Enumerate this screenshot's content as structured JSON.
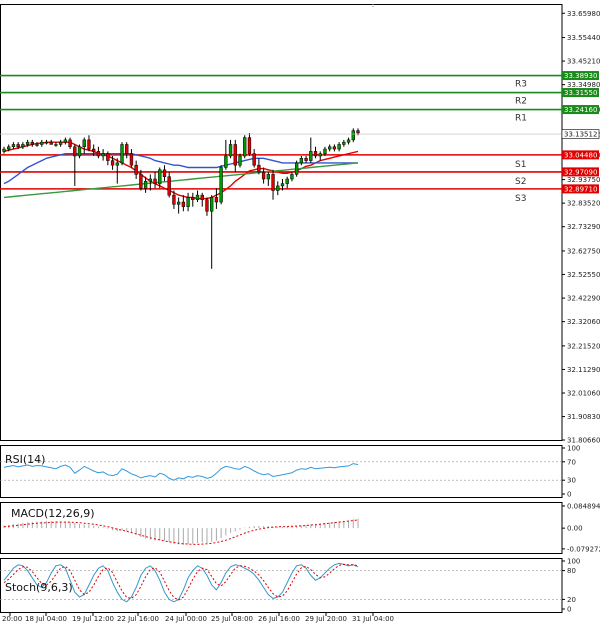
{
  "chart_data": [
    {
      "type": "candlestick",
      "panel": "price",
      "ylim": [
        31.8066,
        33.7
      ],
      "y_ticks": [
        "33.65980",
        "33.55440",
        "33.45210",
        "33.34980",
        "33.24160",
        "33.13512",
        "33.04480",
        "32.93750",
        "32.83520",
        "32.73290",
        "32.62750",
        "32.52550",
        "32.42290",
        "32.32060",
        "32.21520",
        "32.11290",
        "32.01060",
        "31.90830",
        "31.80660"
      ],
      "last_price_label": "33.13512",
      "x_ticks": [
        "20:00",
        "18 Jul 04:00",
        "19 Jul 12:00",
        "22 Jul 16:00",
        "24 Jul 00:00",
        "25 Jul 08:00",
        "26 Jul 16:00",
        "29 Jul 20:00",
        "31 Jul 04:00"
      ],
      "candles": [
        [
          33.06,
          33.08,
          33.05,
          33.07
        ],
        [
          33.07,
          33.09,
          33.06,
          33.08
        ],
        [
          33.08,
          33.1,
          33.07,
          33.09
        ],
        [
          33.09,
          33.1,
          33.07,
          33.08
        ],
        [
          33.08,
          33.1,
          33.07,
          33.09
        ],
        [
          33.09,
          33.11,
          33.08,
          33.1
        ],
        [
          33.1,
          33.11,
          33.08,
          33.09
        ],
        [
          33.09,
          33.1,
          33.08,
          33.09
        ],
        [
          33.09,
          33.11,
          33.08,
          33.1
        ],
        [
          33.1,
          33.11,
          33.09,
          33.1
        ],
        [
          33.1,
          33.11,
          33.09,
          33.09
        ],
        [
          33.09,
          33.1,
          33.08,
          33.09
        ],
        [
          33.09,
          33.11,
          33.08,
          33.1
        ],
        [
          33.1,
          33.12,
          33.09,
          33.11
        ],
        [
          33.11,
          33.12,
          33.07,
          33.08
        ],
        [
          33.08,
          33.09,
          32.91,
          33.04
        ],
        [
          33.04,
          33.09,
          33.03,
          33.08
        ],
        [
          33.08,
          33.12,
          33.05,
          33.11
        ],
        [
          33.11,
          33.13,
          33.06,
          33.07
        ],
        [
          33.07,
          33.09,
          33.04,
          33.06
        ],
        [
          33.06,
          33.08,
          33.03,
          33.04
        ],
        [
          33.04,
          33.07,
          33.02,
          33.05
        ],
        [
          33.05,
          33.06,
          33.0,
          33.02
        ],
        [
          33.02,
          33.04,
          32.98,
          33.0
        ],
        [
          33.0,
          33.03,
          32.92,
          33.01
        ],
        [
          33.01,
          33.1,
          33.0,
          33.09
        ],
        [
          33.09,
          33.1,
          33.03,
          33.05
        ],
        [
          33.05,
          33.07,
          32.99,
          33.0
        ],
        [
          33.0,
          33.02,
          32.94,
          32.96
        ],
        [
          32.96,
          32.98,
          32.89,
          32.9
        ],
        [
          32.9,
          32.95,
          32.88,
          32.93
        ],
        [
          32.93,
          32.96,
          32.89,
          32.94
        ],
        [
          32.94,
          32.97,
          32.9,
          32.92
        ],
        [
          32.92,
          32.99,
          32.9,
          32.98
        ],
        [
          32.98,
          33.0,
          32.93,
          32.95
        ],
        [
          32.95,
          32.97,
          32.86,
          32.87
        ],
        [
          32.87,
          32.89,
          32.81,
          32.83
        ],
        [
          32.83,
          32.86,
          32.79,
          32.84
        ],
        [
          32.84,
          32.87,
          32.8,
          32.82
        ],
        [
          32.82,
          32.88,
          32.8,
          32.86
        ],
        [
          32.86,
          32.88,
          32.82,
          32.85
        ],
        [
          32.85,
          32.89,
          32.84,
          32.87
        ],
        [
          32.87,
          32.88,
          32.82,
          32.85
        ],
        [
          32.85,
          32.86,
          32.78,
          32.8
        ],
        [
          32.8,
          32.87,
          32.55,
          32.86
        ],
        [
          32.86,
          32.9,
          32.81,
          32.84
        ],
        [
          32.84,
          33.0,
          32.83,
          32.99
        ],
        [
          32.99,
          33.11,
          32.98,
          33.04
        ],
        [
          33.04,
          33.11,
          33.03,
          33.09
        ],
        [
          33.09,
          33.11,
          32.97,
          33.0
        ],
        [
          33.0,
          33.05,
          32.99,
          33.04
        ],
        [
          33.04,
          33.13,
          33.03,
          33.12
        ],
        [
          33.12,
          33.14,
          33.04,
          33.05
        ],
        [
          33.05,
          33.07,
          32.99,
          33.0
        ],
        [
          33.0,
          33.03,
          32.96,
          32.97
        ],
        [
          32.97,
          32.99,
          32.92,
          32.94
        ],
        [
          32.94,
          32.97,
          32.91,
          32.96
        ],
        [
          32.96,
          32.98,
          32.85,
          32.89
        ],
        [
          32.89,
          32.93,
          32.87,
          32.91
        ],
        [
          32.91,
          32.94,
          32.89,
          32.92
        ],
        [
          32.92,
          32.95,
          32.9,
          32.94
        ],
        [
          32.94,
          32.97,
          32.93,
          32.96
        ],
        [
          32.96,
          33.02,
          32.95,
          33.01
        ],
        [
          33.01,
          33.04,
          33.0,
          33.03
        ],
        [
          33.03,
          33.04,
          33.01,
          33.02
        ],
        [
          33.02,
          33.12,
          33.01,
          33.06
        ],
        [
          33.06,
          33.08,
          33.03,
          33.04
        ],
        [
          33.04,
          33.06,
          33.02,
          33.05
        ],
        [
          33.05,
          33.08,
          33.04,
          33.07
        ],
        [
          33.07,
          33.09,
          33.06,
          33.08
        ],
        [
          33.08,
          33.09,
          33.06,
          33.07
        ],
        [
          33.07,
          33.1,
          33.06,
          33.09
        ],
        [
          33.09,
          33.11,
          33.08,
          33.1
        ],
        [
          33.1,
          33.12,
          33.09,
          33.11
        ],
        [
          33.11,
          33.16,
          33.1,
          33.15
        ],
        [
          33.15,
          33.16,
          33.13,
          33.14
        ]
      ],
      "series": [
        {
          "color": "#e00000",
          "values": [
            33.06,
            33.065,
            33.07,
            33.075,
            33.08,
            33.085,
            33.09,
            33.095,
            33.095,
            33.1,
            33.1,
            33.1,
            33.1,
            33.1,
            33.1,
            33.09,
            33.08,
            33.07,
            33.065,
            33.06,
            33.05,
            33.045,
            33.04,
            33.03,
            33.02,
            33.01,
            33.0,
            32.99,
            32.975,
            32.96,
            32.945,
            32.93,
            32.92,
            32.91,
            32.9,
            32.89,
            32.88,
            32.87,
            32.865,
            32.86,
            32.86,
            32.855,
            32.855,
            32.855,
            32.86,
            32.87,
            32.88,
            32.895,
            32.91,
            32.93,
            32.945,
            32.96,
            32.975,
            32.98,
            32.985,
            32.985,
            32.98,
            32.975,
            32.97,
            32.965,
            32.965,
            32.97,
            32.975,
            32.985,
            32.995,
            33.0,
            33.01,
            33.02,
            33.025,
            33.03,
            33.035,
            33.04,
            33.045,
            33.05,
            33.055,
            33.06
          ]
        },
        {
          "color": "#3355cc",
          "values": [
            32.92,
            32.93,
            32.945,
            32.96,
            32.975,
            32.99,
            33.0,
            33.01,
            33.02,
            33.03,
            33.035,
            33.04,
            33.045,
            33.05,
            33.05,
            33.05,
            33.05,
            33.05,
            33.05,
            33.05,
            33.05,
            33.05,
            33.05,
            33.05,
            33.05,
            33.05,
            33.05,
            33.05,
            33.045,
            33.04,
            33.035,
            33.03,
            33.02,
            33.015,
            33.01,
            33.005,
            33.0,
            33.0,
            32.995,
            32.99,
            32.99,
            32.99,
            32.99,
            32.99,
            32.99,
            32.99,
            32.995,
            33.0,
            33.005,
            33.01,
            33.015,
            33.02,
            33.025,
            33.03,
            33.03,
            33.03,
            33.025,
            33.02,
            33.015,
            33.01,
            33.01,
            33.01,
            33.01,
            33.01,
            33.01,
            33.01,
            33.01,
            33.01,
            33.01,
            33.01,
            33.01,
            33.01,
            33.01,
            33.01,
            33.01,
            33.01
          ]
        },
        {
          "color": "#3a9a40",
          "values": [
            32.86,
            32.862,
            32.864,
            32.866,
            32.868,
            32.87,
            32.872,
            32.874,
            32.876,
            32.878,
            32.88,
            32.882,
            32.884,
            32.886,
            32.888,
            32.89,
            32.892,
            32.894,
            32.896,
            32.898,
            32.9,
            32.902,
            32.904,
            32.906,
            32.908,
            32.91,
            32.912,
            32.914,
            32.916,
            32.918,
            32.92,
            32.922,
            32.924,
            32.926,
            32.928,
            32.93,
            32.932,
            32.934,
            32.936,
            32.938,
            32.94,
            32.942,
            32.944,
            32.946,
            32.948,
            32.95,
            32.952,
            32.954,
            32.956,
            32.958,
            32.96,
            32.962,
            32.964,
            32.966,
            32.968,
            32.97,
            32.972,
            32.974,
            32.976,
            32.978,
            32.98,
            32.982,
            32.984,
            32.986,
            32.988,
            32.99,
            32.992,
            32.994,
            32.996,
            32.998,
            33.0,
            33.002,
            33.004,
            33.006,
            33.008,
            33.01
          ]
        }
      ],
      "levels": [
        {
          "name": "R3",
          "value": 33.3893,
          "label": "33.38930",
          "color": "#1a8a1a"
        },
        {
          "name": "R2",
          "value": 33.3155,
          "label": "33.31550",
          "color": "#1a8a1a"
        },
        {
          "name": "R1",
          "value": 33.2416,
          "label": "33.24160",
          "color": "#1a8a1a"
        },
        {
          "name": "S1",
          "value": 33.0448,
          "label": "33.04480",
          "color": "#e00000"
        },
        {
          "name": "S2",
          "value": 32.9709,
          "label": "32.97090",
          "color": "#e00000"
        },
        {
          "name": "S3",
          "value": 32.8971,
          "label": "32.89710",
          "color": "#e00000"
        }
      ],
      "colors": {
        "up": "#009900",
        "down": "#dd0000",
        "level_green": "#1a8a1a",
        "level_red": "#e00000"
      }
    },
    {
      "type": "line",
      "panel": "rsi",
      "title": "RSI(14)",
      "ylim": [
        0,
        100
      ],
      "y_ticks": [
        "100",
        "70",
        "30",
        "0"
      ],
      "values": [
        58,
        60,
        62,
        59,
        61,
        63,
        60,
        62,
        61,
        59,
        57,
        55,
        60,
        63,
        58,
        45,
        52,
        60,
        55,
        50,
        46,
        48,
        42,
        40,
        43,
        55,
        50,
        44,
        40,
        35,
        38,
        40,
        37,
        45,
        42,
        34,
        30,
        35,
        33,
        38,
        36,
        40,
        38,
        34,
        37,
        45,
        55,
        60,
        58,
        55,
        54,
        60,
        56,
        50,
        45,
        42,
        44,
        38,
        40,
        42,
        44,
        46,
        52,
        55,
        54,
        58,
        55,
        56,
        57,
        58,
        57,
        59,
        60,
        61,
        66,
        64
      ],
      "color": "#3399dd"
    },
    {
      "type": "bar+line",
      "panel": "macd",
      "title": "MACD(12,26,9)",
      "ylim": [
        -0.095,
        0.1
      ],
      "y_ticks": [
        "0.084894",
        "0.00",
        "-0.079272"
      ],
      "histogram": [
        0.01,
        0.012,
        0.015,
        0.018,
        0.02,
        0.022,
        0.024,
        0.025,
        0.026,
        0.027,
        0.027,
        0.026,
        0.025,
        0.025,
        0.024,
        0.02,
        0.016,
        0.014,
        0.012,
        0.01,
        0.006,
        0.003,
        -0.002,
        -0.008,
        -0.012,
        -0.01,
        -0.012,
        -0.018,
        -0.026,
        -0.034,
        -0.04,
        -0.044,
        -0.048,
        -0.046,
        -0.048,
        -0.054,
        -0.06,
        -0.062,
        -0.064,
        -0.062,
        -0.06,
        -0.057,
        -0.055,
        -0.057,
        -0.052,
        -0.048,
        -0.038,
        -0.028,
        -0.018,
        -0.012,
        -0.006,
        0.002,
        0.006,
        0.008,
        0.009,
        0.008,
        0.008,
        0.006,
        0.005,
        0.004,
        0.004,
        0.005,
        0.007,
        0.01,
        0.012,
        0.014,
        0.016,
        0.018,
        0.02,
        0.022,
        0.024,
        0.026,
        0.028,
        0.03,
        0.034,
        0.036
      ],
      "signal": [
        0.005,
        0.007,
        0.009,
        0.011,
        0.013,
        0.015,
        0.017,
        0.019,
        0.02,
        0.021,
        0.022,
        0.023,
        0.023,
        0.023,
        0.023,
        0.022,
        0.021,
        0.019,
        0.017,
        0.015,
        0.012,
        0.009,
        0.005,
        0.001,
        -0.004,
        -0.008,
        -0.012,
        -0.017,
        -0.022,
        -0.027,
        -0.032,
        -0.037,
        -0.041,
        -0.045,
        -0.049,
        -0.052,
        -0.055,
        -0.058,
        -0.06,
        -0.061,
        -0.062,
        -0.062,
        -0.061,
        -0.06,
        -0.058,
        -0.055,
        -0.051,
        -0.046,
        -0.04,
        -0.033,
        -0.026,
        -0.019,
        -0.013,
        -0.008,
        -0.004,
        -0.001,
        0.002,
        0.004,
        0.005,
        0.006,
        0.006,
        0.007,
        0.008,
        0.009,
        0.01,
        0.012,
        0.013,
        0.015,
        0.017,
        0.019,
        0.021,
        0.023,
        0.025,
        0.027,
        0.029,
        0.031
      ],
      "colors": {
        "histogram": "#aaaaaa",
        "signal": "#e00000"
      }
    },
    {
      "type": "line",
      "panel": "stochastic",
      "title": "Stoch(9,6,3)",
      "ylim": [
        0,
        100
      ],
      "y_ticks": [
        "100",
        "80",
        "20",
        "0"
      ],
      "series": [
        {
          "color": "#3399cc",
          "values": [
            60,
            72,
            85,
            92,
            90,
            80,
            65,
            50,
            45,
            55,
            75,
            90,
            92,
            85,
            60,
            35,
            25,
            30,
            50,
            70,
            85,
            90,
            80,
            55,
            35,
            20,
            15,
            25,
            45,
            70,
            85,
            90,
            80,
            60,
            35,
            20,
            15,
            20,
            40,
            65,
            80,
            90,
            85,
            70,
            50,
            40,
            55,
            75,
            88,
            92,
            90,
            85,
            80,
            72,
            60,
            45,
            30,
            22,
            25,
            35,
            55,
            75,
            90,
            92,
            85,
            70,
            60,
            65,
            75,
            85,
            92,
            95,
            93,
            90,
            92,
            88
          ]
        },
        {
          "color": "#e00000",
          "values": [
            55,
            62,
            72,
            82,
            88,
            87,
            78,
            65,
            53,
            50,
            58,
            72,
            85,
            89,
            80,
            60,
            40,
            30,
            35,
            50,
            68,
            82,
            86,
            76,
            56,
            38,
            24,
            22,
            30,
            47,
            67,
            82,
            86,
            77,
            58,
            38,
            24,
            19,
            25,
            42,
            62,
            78,
            85,
            82,
            68,
            53,
            48,
            57,
            72,
            85,
            90,
            89,
            85,
            79,
            71,
            59,
            45,
            32,
            25,
            27,
            38,
            55,
            73,
            86,
            89,
            82,
            72,
            65,
            67,
            75,
            84,
            91,
            93,
            92,
            92,
            90
          ]
        }
      ]
    }
  ]
}
